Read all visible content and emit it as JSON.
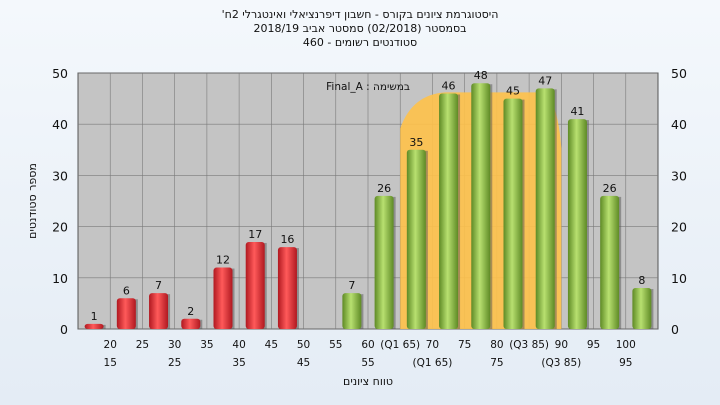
{
  "chart_data": {
    "type": "bar",
    "title_lines": [
      "'היסטוגרמת ציונים בקורס - חשבון דיפרנציאלי ואינטגרלי 2ח",
      "בסמסטר  (02/2018)  סמסטר אביב 2018/19",
      "סטודנטים רשומים - 460"
    ],
    "xlabel": "טווח ציונים",
    "ylabel": "מספר סטודנטים",
    "ylim": [
      0,
      50
    ],
    "y_ticks": [
      0,
      10,
      20,
      30,
      40,
      50
    ],
    "categories": [
      "15",
      "20",
      "25",
      "30",
      "35",
      "40",
      "45",
      "50",
      "55",
      "60",
      "65",
      "70",
      "75",
      "80",
      "85",
      "90",
      "95",
      "100"
    ],
    "x_tick_labels_row1": [
      "20",
      "25",
      "30",
      "35",
      "40",
      "45",
      "50",
      "55",
      "60",
      "(Q1 65)",
      "70",
      "75",
      "80",
      "(Q3 85)",
      "90",
      "95",
      "100"
    ],
    "x_tick_labels_row2": [
      "15",
      "25",
      "35",
      "45",
      "55",
      "(Q1 65)",
      "75",
      "(Q3 85)",
      "95"
    ],
    "series": [
      {
        "values": [
          1,
          6,
          7,
          2,
          12,
          17,
          16,
          0,
          7,
          26,
          35,
          46,
          48,
          45,
          47,
          41,
          26,
          8
        ],
        "colors": [
          "red",
          "red",
          "red",
          "red",
          "red",
          "red",
          "red",
          "red",
          "green",
          "green",
          "green",
          "green",
          "green",
          "green",
          "green",
          "green",
          "green",
          "green"
        ]
      }
    ],
    "annotation": "Final_A : במשימה",
    "quartile_band": {
      "from": "65",
      "to": "85",
      "color": "#ffc24a"
    },
    "colors": {
      "red": "#e8343c",
      "green": "#8cc043",
      "plot_bg": "#c4c4c4",
      "band": "#ffc24a"
    },
    "grid": true
  }
}
